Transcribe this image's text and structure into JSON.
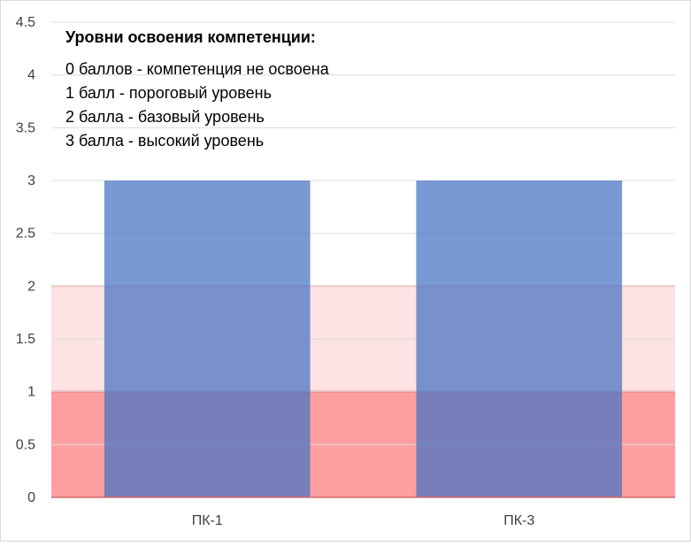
{
  "chart_data": {
    "type": "bar",
    "categories": [
      "ПК-1",
      "ПК-3"
    ],
    "values": [
      3,
      3
    ],
    "ylim": [
      0,
      4.5
    ],
    "yticks": [
      "0",
      "0.5",
      "1",
      "1.5",
      "2",
      "2.5",
      "3",
      "3.5",
      "4",
      "4.5"
    ],
    "grid": true,
    "bands": [
      {
        "from": 0,
        "to": 1,
        "color": "#ff9f9f"
      },
      {
        "from": 1,
        "to": 2,
        "color": "#fde3e3"
      }
    ],
    "bar_color": "#4472c4",
    "bar_opacity": 0.72,
    "annotation": {
      "title": "Уровни освоения компетенции:",
      "lines": [
        "0 баллов - компетенция не освоена",
        "1 балл - пороговый уровень",
        "2 балла - базовый уровень",
        "3 балла - высокий уровень"
      ]
    }
  }
}
